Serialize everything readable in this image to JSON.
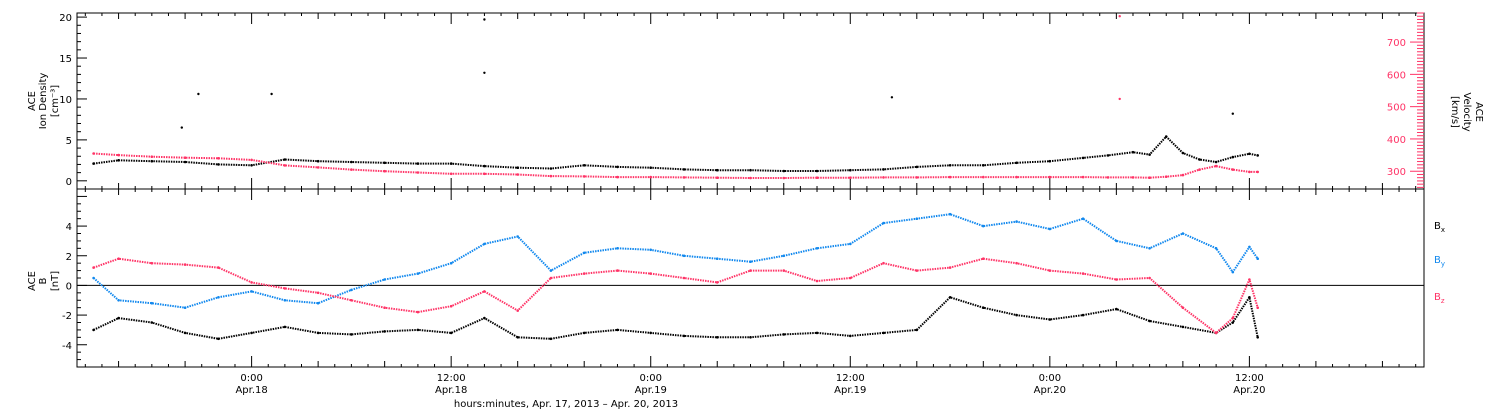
{
  "chart_data": [
    {
      "type": "scatter",
      "ylabel_lines": [
        "ACE",
        "Ion Density",
        "[cm⁻³]"
      ],
      "ylim": [
        -1,
        20.5
      ],
      "yticks": [
        0,
        5,
        10,
        15,
        20
      ],
      "y2label_lines": [
        "ACE",
        "Velocity",
        "[km/s]"
      ],
      "y2lim": [
        245,
        790
      ],
      "y2ticks": [
        300,
        400,
        500,
        600,
        700
      ],
      "y2ticklabels": [
        "300",
        "400",
        "500",
        "600",
        "700"
      ],
      "series": [
        {
          "color": "#000000",
          "axis": "left",
          "x": [
            -9.5,
            -8,
            -6,
            -4,
            -2,
            0,
            2,
            4,
            6,
            8,
            10,
            12,
            14,
            16,
            18,
            20,
            22,
            24,
            26,
            28,
            30,
            32,
            34,
            36,
            38,
            40,
            42,
            44,
            46,
            48,
            50,
            51.5,
            53,
            54,
            55,
            56,
            57,
            58,
            59,
            60,
            60.5
          ],
          "y": [
            2.1,
            2.5,
            2.4,
            2.3,
            2,
            1.9,
            2.6,
            2.4,
            2.3,
            2.2,
            2.1,
            2.1,
            1.8,
            1.6,
            1.5,
            1.9,
            1.7,
            1.6,
            1.4,
            1.3,
            1.3,
            1.2,
            1.2,
            1.3,
            1.4,
            1.7,
            1.9,
            1.9,
            2.2,
            2.4,
            2.8,
            3.1,
            3.5,
            3.2,
            5.4,
            3.4,
            2.6,
            2.3,
            2.9,
            3.3,
            3.1
          ]
        },
        {
          "color": "#ff3366",
          "axis": "right",
          "x": [
            -9.5,
            -8,
            -6,
            -4,
            -2,
            0,
            2,
            4,
            6,
            8,
            10,
            12,
            14,
            16,
            18,
            20,
            22,
            24,
            26,
            28,
            30,
            32,
            34,
            36,
            38,
            40,
            42,
            44,
            46,
            48,
            50,
            51.5,
            53,
            54,
            55,
            56,
            57,
            58,
            59,
            60,
            60.5
          ],
          "y": [
            355,
            350,
            345,
            342,
            340,
            335,
            318,
            312,
            305,
            300,
            296,
            292,
            292,
            290,
            285,
            284,
            282,
            282,
            281,
            280,
            279,
            279,
            280,
            280,
            281,
            281,
            282,
            282,
            282,
            282,
            282,
            281,
            281,
            280,
            283,
            288,
            305,
            316,
            305,
            298,
            298
          ]
        }
      ],
      "outliers": [
        {
          "x": 14,
          "y": 19.7
        },
        {
          "x": 14,
          "y": 13.2
        },
        {
          "x": -3.2,
          "y": 10.6
        },
        {
          "x": 1.2,
          "y": 10.6
        },
        {
          "x": -4.2,
          "y": 6.5
        },
        {
          "x": 38.5,
          "y": 10.2
        },
        {
          "x": 59,
          "y": 8.2
        }
      ],
      "outliers_right": [
        {
          "x": 52.2,
          "y": 780
        },
        {
          "x": 52.2,
          "y": 524
        }
      ],
      "grid": false
    },
    {
      "type": "scatter",
      "ylabel_lines": [
        "ACE",
        "B",
        "[nT]"
      ],
      "ylim": [
        -5.5,
        6.5
      ],
      "yticks": [
        -4,
        -2,
        0,
        2,
        4
      ],
      "series": [
        {
          "name": "Bx",
          "color": "#000000",
          "x": [
            -9.5,
            -8,
            -6,
            -4,
            -2,
            0,
            2,
            4,
            6,
            8,
            10,
            12,
            14,
            16,
            18,
            20,
            22,
            24,
            26,
            28,
            30,
            32,
            34,
            36,
            38,
            40,
            42,
            44,
            46,
            48,
            50,
            52,
            54,
            56,
            58,
            59,
            60,
            60.5
          ],
          "y": [
            -3,
            -2.2,
            -2.5,
            -3.2,
            -3.6,
            -3.2,
            -2.8,
            -3.2,
            -3.3,
            -3.1,
            -3.0,
            -3.2,
            -2.2,
            -3.5,
            -3.6,
            -3.2,
            -3.0,
            -3.2,
            -3.4,
            -3.5,
            -3.5,
            -3.3,
            -3.2,
            -3.4,
            -3.2,
            -3.0,
            -0.8,
            -1.5,
            -2.0,
            -2.3,
            -2.0,
            -1.6,
            -2.4,
            -2.8,
            -3.2,
            -2.5,
            -0.8,
            -3.5
          ]
        },
        {
          "name": "By",
          "color": "#1188ee",
          "x": [
            -9.5,
            -8,
            -6,
            -4,
            -2,
            0,
            2,
            4,
            6,
            8,
            10,
            12,
            14,
            16,
            18,
            20,
            22,
            24,
            26,
            28,
            30,
            32,
            34,
            36,
            38,
            40,
            42,
            44,
            46,
            48,
            50,
            52,
            54,
            56,
            58,
            59,
            60,
            60.5
          ],
          "y": [
            0.5,
            -1.0,
            -1.2,
            -1.5,
            -0.8,
            -0.4,
            -1.0,
            -1.2,
            -0.3,
            0.4,
            0.8,
            1.5,
            2.8,
            3.3,
            1.0,
            2.2,
            2.5,
            2.4,
            2.0,
            1.8,
            1.6,
            2.0,
            2.5,
            2.8,
            4.2,
            4.5,
            4.8,
            4.0,
            4.3,
            3.8,
            4.5,
            3.0,
            2.5,
            3.5,
            2.5,
            0.9,
            2.6,
            1.8
          ]
        },
        {
          "name": "Bz",
          "color": "#ff3366",
          "x": [
            -9.5,
            -8,
            -6,
            -4,
            -2,
            0,
            2,
            4,
            6,
            8,
            10,
            12,
            14,
            16,
            18,
            20,
            22,
            24,
            26,
            28,
            30,
            32,
            34,
            36,
            38,
            40,
            42,
            44,
            46,
            48,
            50,
            52,
            54,
            56,
            58,
            59,
            60,
            60.5
          ],
          "y": [
            1.2,
            1.8,
            1.5,
            1.4,
            1.2,
            0.2,
            -0.2,
            -0.5,
            -1.0,
            -1.5,
            -1.8,
            -1.4,
            -0.4,
            -1.7,
            0.5,
            0.8,
            1.0,
            0.8,
            0.5,
            0.2,
            1.0,
            1.0,
            0.3,
            0.5,
            1.5,
            1.0,
            1.2,
            1.8,
            1.5,
            1.0,
            0.8,
            0.4,
            0.5,
            -1.5,
            -3.2,
            -2.2,
            0.4,
            -1.5
          ]
        }
      ],
      "zero_line": true,
      "legend_position": "right",
      "legend": [
        {
          "base": "B",
          "sub": "x",
          "color": "#000000"
        },
        {
          "base": "B",
          "sub": "y",
          "color": "#1188ee"
        },
        {
          "base": "B",
          "sub": "z",
          "color": "#ff3366"
        }
      ],
      "grid": false
    }
  ],
  "x_axis": {
    "xlim": [
      -10.5,
      70.5
    ],
    "ticks": [
      {
        "x": 0,
        "top": "0:00",
        "bottom": "Apr.18"
      },
      {
        "x": 12,
        "top": "12:00",
        "bottom": "Apr.18"
      },
      {
        "x": 24,
        "top": "0:00",
        "bottom": "Apr.19"
      },
      {
        "x": 36,
        "top": "12:00",
        "bottom": "Apr.19"
      },
      {
        "x": 48,
        "top": "0:00",
        "bottom": "Apr.20"
      },
      {
        "x": 60,
        "top": "12:00",
        "bottom": "Apr.20"
      }
    ],
    "label": "hours:minutes, Apr. 17, 2013 – Apr. 20, 2013"
  }
}
